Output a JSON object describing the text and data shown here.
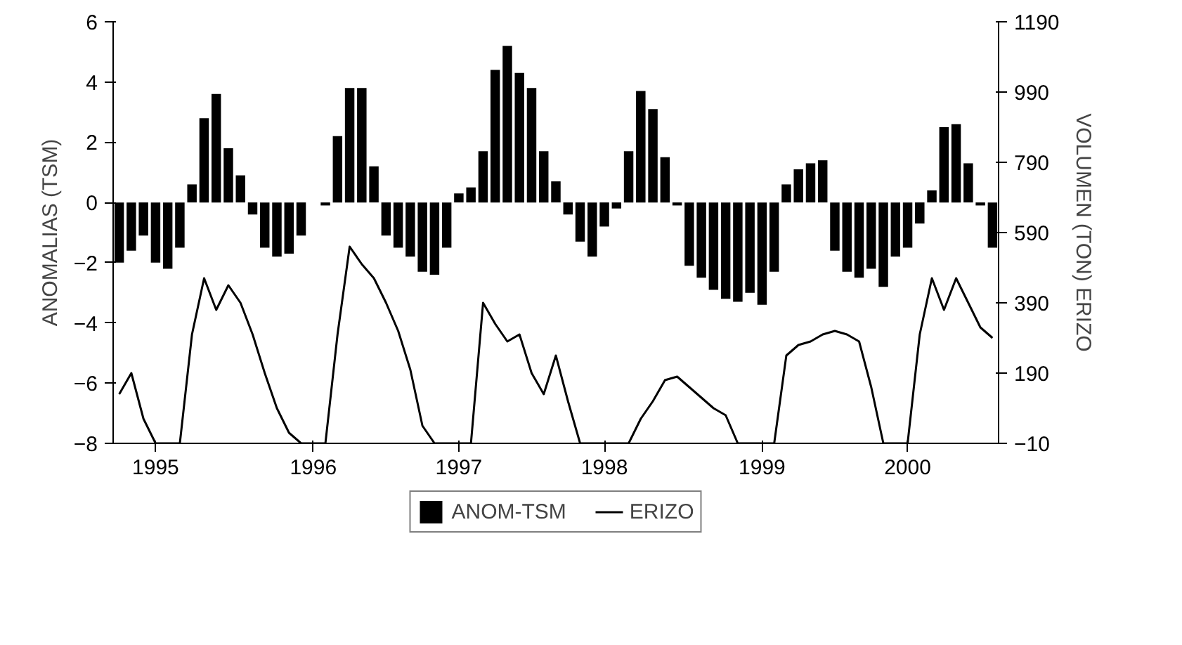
{
  "chart_data": {
    "type": "bar",
    "ylabel": "ANOMALIAS (TSM)",
    "y2label": "VOLUMEN (TON) ERIZO",
    "categories": [
      null,
      null,
      null,
      "1995",
      null,
      null,
      null,
      null,
      null,
      null,
      null,
      null,
      null,
      null,
      null,
      null,
      "1996",
      null,
      null,
      null,
      null,
      null,
      null,
      null,
      null,
      null,
      null,
      null,
      "1997",
      null,
      null,
      null,
      null,
      null,
      null,
      null,
      null,
      null,
      null,
      null,
      "1998",
      null,
      null,
      null,
      null,
      null,
      null,
      null,
      null,
      null,
      null,
      null,
      null,
      "1999",
      null,
      null,
      null,
      null,
      null,
      null,
      null,
      null,
      null,
      null,
      null,
      "2000",
      null,
      null,
      null,
      null,
      null,
      null,
      null
    ],
    "series": [
      {
        "name": "ANOM-TSM",
        "color": "#000000",
        "values": [
          -2.0,
          -1.6,
          -1.1,
          -2.0,
          -2.2,
          -1.5,
          0.6,
          2.8,
          3.6,
          1.8,
          0.9,
          -0.4,
          -1.5,
          -1.8,
          -1.7,
          -1.1,
          0,
          -0.1,
          2.2,
          3.8,
          3.8,
          1.2,
          -1.1,
          -1.5,
          -1.8,
          -2.3,
          -2.4,
          -1.5,
          0.3,
          0.5,
          1.7,
          4.4,
          5.2,
          4.3,
          3.8,
          1.7,
          0.7,
          -0.4,
          -1.3,
          -1.8,
          -0.8,
          -0.2,
          1.7,
          3.7,
          3.1,
          1.5,
          -0.1,
          -2.1,
          -2.5,
          -2.9,
          -3.2,
          -3.3,
          -3.0,
          -3.4,
          -2.3,
          0.6,
          1.1,
          1.3,
          1.4,
          -1.6,
          -2.3,
          -2.5,
          -2.2,
          -2.8,
          -1.8,
          -1.5,
          -0.7,
          0.4,
          2.5,
          2.6,
          1.3,
          -0.1,
          -1.5
        ]
      },
      {
        "name": "ERIZO",
        "type": "line",
        "axis": "y2",
        "color": "#000000",
        "values": [
          130,
          190,
          60,
          -10,
          -10,
          -10,
          300,
          460,
          370,
          440,
          390,
          300,
          190,
          90,
          20,
          -10,
          -10,
          -10,
          300,
          550,
          500,
          460,
          390,
          310,
          200,
          40,
          -10,
          -10,
          -10,
          -10,
          390,
          330,
          280,
          300,
          190,
          130,
          240,
          110,
          -10,
          -10,
          -10,
          -10,
          -10,
          60,
          110,
          170,
          180,
          150,
          120,
          90,
          70,
          -10,
          -10,
          -10,
          -10,
          240,
          270,
          280,
          300,
          310,
          300,
          280,
          150,
          -10,
          -10,
          -10,
          300,
          460,
          370,
          460,
          390,
          320,
          290
        ]
      }
    ],
    "ylim": [
      -8,
      6
    ],
    "yticks": [
      -8,
      -6,
      -4,
      -2,
      0,
      2,
      4,
      6
    ],
    "y2lim": [
      -10,
      1190
    ],
    "y2ticks": [
      -10,
      190,
      390,
      590,
      790,
      990,
      1190
    ],
    "legend": "bottom"
  }
}
